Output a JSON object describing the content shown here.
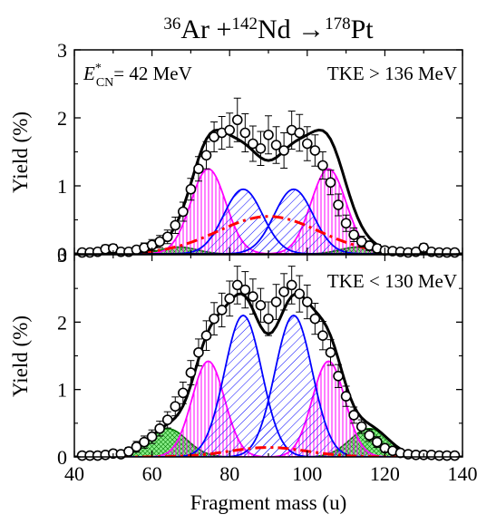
{
  "title": {
    "lead1": "36",
    "el1": "Ar",
    "plus": " +",
    "lead2": "142",
    "el2": "Nd",
    "arrow": " →",
    "lead3": "178",
    "el3": "Pt"
  },
  "colors": {
    "fit": "#000000",
    "asymmetric": "#ff00ff",
    "symmetric": "#0000ff",
    "qf": "#ff0000",
    "wing_fill": "#55dd55",
    "wing_line": "#007700"
  },
  "chart_data": [
    {
      "type": "scatter",
      "panel": "top",
      "annotation_energy": {
        "symbol": "E",
        "sup": "*",
        "sub": "CN",
        "text": "= 42 MeV"
      },
      "annotation_tke": "TKE > 136 MeV",
      "ylabel": "Yield (%)",
      "xlim": [
        40,
        140
      ],
      "ylim": [
        0,
        3
      ],
      "yticks": [
        "0",
        "1",
        "2",
        "3"
      ],
      "x": [
        42,
        44,
        46,
        48,
        50,
        52,
        54,
        56,
        58,
        60,
        62,
        64,
        66,
        68,
        70,
        72,
        74,
        76,
        78,
        80,
        82,
        84,
        86,
        88,
        90,
        92,
        94,
        96,
        98,
        100,
        102,
        104,
        106,
        108,
        110,
        112,
        114,
        116,
        118,
        120,
        122,
        124,
        126,
        128,
        130,
        132,
        134,
        136,
        138
      ],
      "y": [
        0.02,
        0.02,
        0.03,
        0.07,
        0.08,
        0.03,
        0.03,
        0.06,
        0.09,
        0.13,
        0.18,
        0.25,
        0.42,
        0.62,
        0.95,
        1.25,
        1.45,
        1.72,
        1.78,
        1.82,
        1.97,
        1.78,
        1.62,
        1.55,
        1.75,
        1.6,
        1.52,
        1.82,
        1.78,
        1.62,
        1.52,
        1.3,
        1.05,
        0.72,
        0.45,
        0.28,
        0.18,
        0.12,
        0.08,
        0.05,
        0.04,
        0.03,
        0.02,
        0.03,
        0.09,
        0.03,
        0.02,
        0.02,
        0.02
      ],
      "yerr": [
        0.03,
        0.03,
        0.04,
        0.06,
        0.06,
        0.04,
        0.04,
        0.05,
        0.07,
        0.08,
        0.09,
        0.1,
        0.12,
        0.14,
        0.16,
        0.18,
        0.2,
        0.22,
        0.24,
        0.25,
        0.32,
        0.28,
        0.26,
        0.25,
        0.28,
        0.27,
        0.26,
        0.28,
        0.27,
        0.25,
        0.23,
        0.2,
        0.18,
        0.16,
        0.12,
        0.1,
        0.08,
        0.07,
        0.06,
        0.05,
        0.04,
        0.04,
        0.03,
        0.04,
        0.06,
        0.04,
        0.03,
        0.03,
        0.03
      ],
      "fit_total": {
        "step": 1
      },
      "components": [
        {
          "kind": "wing",
          "mu": 67,
          "sigma": 4.5,
          "amp": 0.1
        },
        {
          "kind": "wing",
          "mu": 113,
          "sigma": 4.5,
          "amp": 0.1
        },
        {
          "kind": "asymmetric",
          "mu": 74.5,
          "sigma": 4.5,
          "amp": 1.25
        },
        {
          "kind": "asymmetric",
          "mu": 105.5,
          "sigma": 4.5,
          "amp": 1.25
        },
        {
          "kind": "symmetric",
          "mu": 83.5,
          "sigma": 5.0,
          "amp": 0.95
        },
        {
          "kind": "symmetric",
          "mu": 96.5,
          "sigma": 5.0,
          "amp": 0.95
        },
        {
          "kind": "qf",
          "mu": 90,
          "sigma": 13,
          "amp": 0.55
        }
      ]
    },
    {
      "type": "scatter",
      "panel": "bottom",
      "annotation_tke": "TKE < 130 MeV",
      "ylabel": "Yield (%)",
      "xlabel": "Fragment mass (u)",
      "xlim": [
        40,
        140
      ],
      "ylim": [
        0,
        3
      ],
      "yticks": [
        "0",
        "1",
        "2",
        "3"
      ],
      "xticks": [
        "40",
        "60",
        "80",
        "100",
        "120",
        "140"
      ],
      "x": [
        42,
        44,
        46,
        48,
        50,
        52,
        54,
        56,
        58,
        60,
        62,
        64,
        66,
        68,
        70,
        72,
        74,
        76,
        78,
        80,
        82,
        84,
        86,
        88,
        90,
        92,
        94,
        96,
        98,
        100,
        102,
        104,
        106,
        108,
        110,
        112,
        114,
        116,
        118,
        120,
        122,
        124,
        126,
        128,
        130,
        132,
        134,
        136,
        138
      ],
      "y": [
        0.02,
        0.02,
        0.02,
        0.03,
        0.05,
        0.04,
        0.08,
        0.15,
        0.22,
        0.3,
        0.42,
        0.55,
        0.75,
        0.95,
        1.25,
        1.55,
        1.8,
        2.05,
        2.18,
        2.35,
        2.55,
        2.48,
        2.38,
        2.25,
        2.05,
        2.3,
        2.45,
        2.55,
        2.42,
        2.3,
        2.05,
        1.8,
        1.55,
        1.2,
        0.9,
        0.62,
        0.45,
        0.32,
        0.22,
        0.13,
        0.09,
        0.06,
        0.04,
        0.03,
        0.03,
        0.03,
        0.02,
        0.02,
        0.02
      ],
      "yerr": [
        0.03,
        0.03,
        0.03,
        0.04,
        0.05,
        0.05,
        0.06,
        0.08,
        0.09,
        0.1,
        0.11,
        0.12,
        0.14,
        0.16,
        0.18,
        0.2,
        0.22,
        0.24,
        0.25,
        0.26,
        0.28,
        0.27,
        0.26,
        0.25,
        0.25,
        0.26,
        0.27,
        0.28,
        0.27,
        0.25,
        0.23,
        0.21,
        0.19,
        0.17,
        0.15,
        0.12,
        0.1,
        0.09,
        0.08,
        0.06,
        0.05,
        0.05,
        0.04,
        0.04,
        0.04,
        0.04,
        0.03,
        0.03,
        0.03
      ],
      "fit_total": {
        "step": 1
      },
      "components": [
        {
          "kind": "wing",
          "mu": 64,
          "sigma": 5.0,
          "amp": 0.42
        },
        {
          "kind": "wing",
          "mu": 116,
          "sigma": 5.0,
          "amp": 0.42
        },
        {
          "kind": "asymmetric",
          "mu": 74.5,
          "sigma": 4.2,
          "amp": 1.42
        },
        {
          "kind": "asymmetric",
          "mu": 105.5,
          "sigma": 4.2,
          "amp": 1.42
        },
        {
          "kind": "symmetric",
          "mu": 83.5,
          "sigma": 4.8,
          "amp": 2.1
        },
        {
          "kind": "symmetric",
          "mu": 96.5,
          "sigma": 4.8,
          "amp": 2.1
        },
        {
          "kind": "qf",
          "mu": 90,
          "sigma": 10,
          "amp": 0.14
        }
      ]
    }
  ]
}
